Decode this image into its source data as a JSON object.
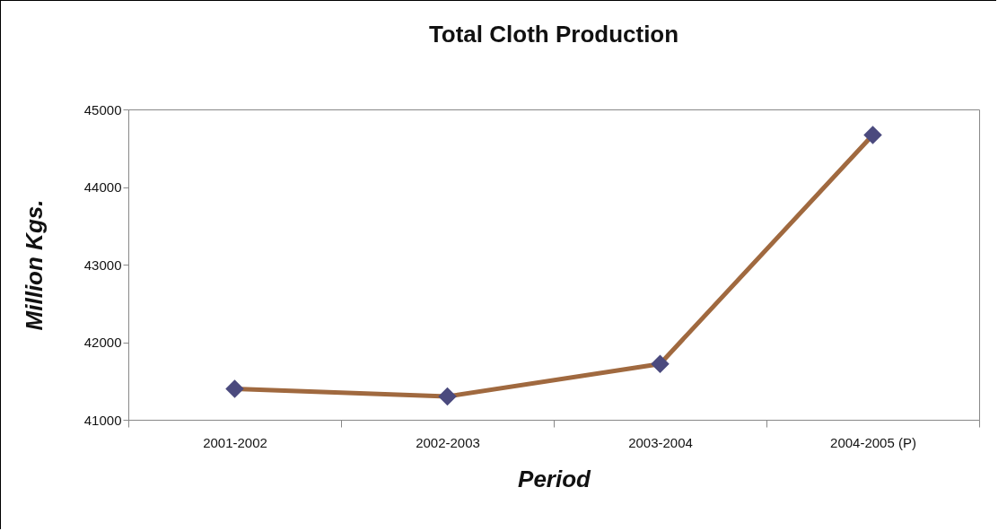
{
  "chart_data": {
    "type": "line",
    "title": "Total Cloth Production",
    "xlabel": "Period",
    "ylabel": "Million Kgs.",
    "categories": [
      "2001-2002",
      "2002-2003",
      "2003-2004",
      "2004-2005 (P)"
    ],
    "series": [
      {
        "color": "#a0693f",
        "colors": [
          "#4b4a7e",
          "#4b4a7e",
          "#4b4a7e",
          "#4b4a7e"
        ],
        "values": [
          41400,
          41300,
          41720,
          44670
        ]
      }
    ],
    "ylim": [
      41000,
      45000
    ],
    "yticks": [
      41000,
      42000,
      43000,
      44000,
      45000
    ],
    "grid": false,
    "marker": "diamond",
    "line_style": "solid"
  }
}
